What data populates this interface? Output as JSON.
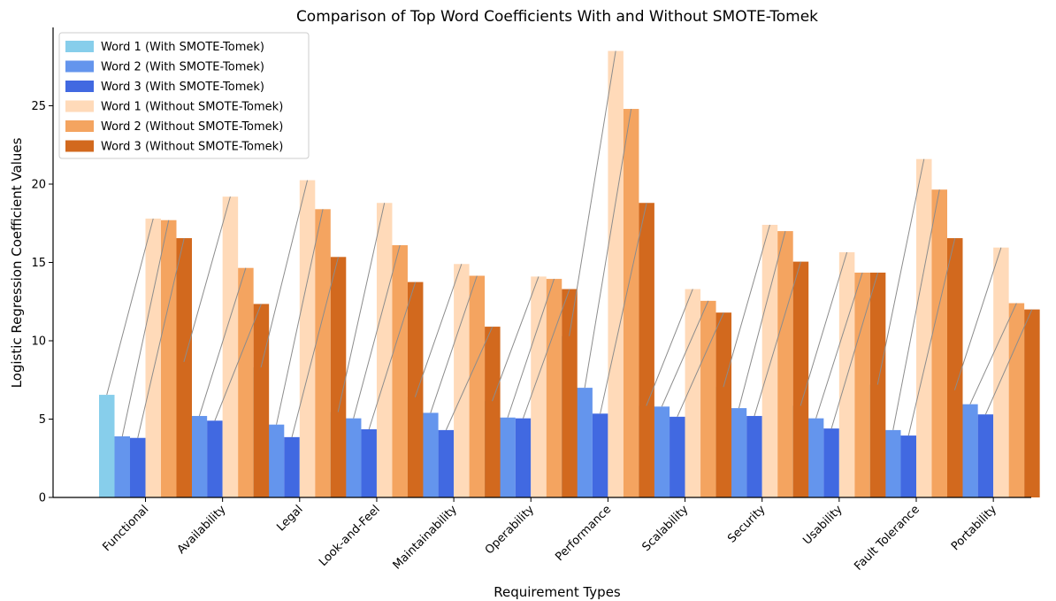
{
  "chart_data": {
    "type": "bar",
    "title": "Comparison of Top Word Coefficients With and Without SMOTE-Tomek",
    "xlabel": "Requirement Types",
    "ylabel": "Logistic Regression Coefficient Values",
    "ylim": [
      0,
      30
    ],
    "yticks": [
      0,
      5,
      10,
      15,
      20,
      25
    ],
    "grid": false,
    "legend_position": "top-left",
    "categories": [
      "Functional",
      "Availability",
      "Legal",
      "Look-and-Feel",
      "Maintainability",
      "Operability",
      "Performance",
      "Scalability",
      "Security",
      "Usability",
      "Fault Tolerance",
      "Portability"
    ],
    "series": [
      {
        "name": "Word 1 (With SMOTE-Tomek)",
        "color": "#87ceeb",
        "values": [
          6.55,
          8.65,
          8.3,
          5.45,
          6.4,
          6.15,
          10.3,
          5.85,
          7.05,
          5.85,
          7.2,
          6.85
        ]
      },
      {
        "name": "Word 2 (With SMOTE-Tomek)",
        "color": "#6495ed",
        "values": [
          3.9,
          5.2,
          4.65,
          5.05,
          5.4,
          5.1,
          7.0,
          5.8,
          5.7,
          5.05,
          4.3,
          5.95
        ]
      },
      {
        "name": "Word 3 (With SMOTE-Tomek)",
        "color": "#4169e1",
        "values": [
          3.8,
          4.9,
          3.85,
          4.35,
          4.3,
          5.05,
          5.35,
          5.15,
          5.2,
          4.4,
          3.95,
          5.3
        ]
      },
      {
        "name": "Word 1 (Without SMOTE-Tomek)",
        "color": "#ffdab9",
        "values": [
          17.8,
          19.2,
          20.25,
          18.8,
          14.9,
          14.1,
          28.5,
          13.3,
          17.4,
          15.65,
          21.6,
          15.95
        ]
      },
      {
        "name": "Word 2 (Without SMOTE-Tomek)",
        "color": "#f4a460",
        "values": [
          17.7,
          14.65,
          18.4,
          16.1,
          14.15,
          13.95,
          24.8,
          12.55,
          17.0,
          14.35,
          19.65,
          12.4
        ]
      },
      {
        "name": "Word 3 (Without SMOTE-Tomek)",
        "color": "#d2691e",
        "values": [
          16.55,
          12.35,
          15.35,
          13.75,
          10.9,
          13.3,
          18.8,
          11.8,
          15.05,
          14.35,
          16.55,
          12.0
        ]
      }
    ]
  }
}
